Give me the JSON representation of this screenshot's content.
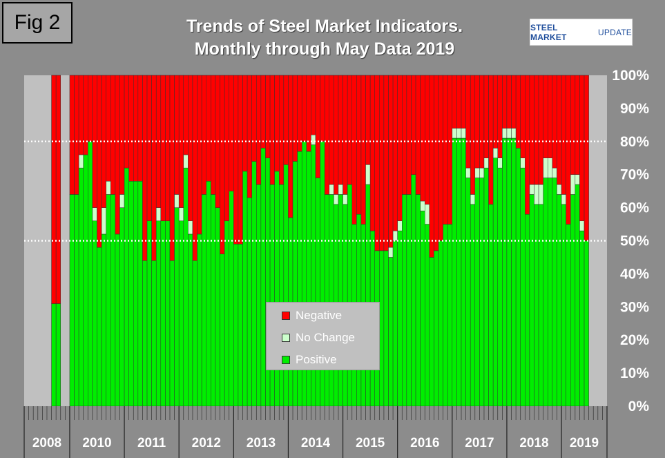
{
  "figure_label": "Fig 2",
  "title_line1": "Trends of Steel Market Indicators.",
  "title_line2": "Monthly through May Data  2019",
  "logo": {
    "part1": "STEEL MARKET",
    "part2": "UPDATE"
  },
  "colors": {
    "negative": "#ff0000",
    "no_change": "#ccffcc",
    "positive": "#00ee00",
    "plot_bg": "#c0c0c0",
    "background": "#8c8c8c"
  },
  "legend": [
    {
      "label": "Negative",
      "color": "#ff0000"
    },
    {
      "label": "No Change",
      "color": "#ccffcc"
    },
    {
      "label": "Positive",
      "color": "#00ee00"
    }
  ],
  "chart_data": {
    "type": "bar",
    "stacked": true,
    "title": "Trends of Steel Market Indicators. Monthly through May Data 2019",
    "ylabel": "",
    "ylim": [
      0,
      100
    ],
    "y_ticks": [
      "0%",
      "10%",
      "20%",
      "30%",
      "40%",
      "50%",
      "60%",
      "70%",
      "80%",
      "90%",
      "100%"
    ],
    "reference_lines": [
      50,
      80
    ],
    "year_groups": [
      {
        "label": "2008",
        "months": 10
      },
      {
        "label": "2010",
        "months": 12
      },
      {
        "label": "2011",
        "months": 12
      },
      {
        "label": "2012",
        "months": 12
      },
      {
        "label": "2013",
        "months": 12
      },
      {
        "label": "2014",
        "months": 12
      },
      {
        "label": "2015",
        "months": 12
      },
      {
        "label": "2016",
        "months": 12
      },
      {
        "label": "2017",
        "months": 12
      },
      {
        "label": "2018",
        "months": 12
      },
      {
        "label": "2019",
        "months": 10
      }
    ],
    "series": [
      {
        "name": "Positive",
        "values": [
          null,
          null,
          null,
          null,
          null,
          null,
          31,
          31,
          null,
          null,
          64,
          64,
          72,
          76,
          80,
          56,
          48,
          52,
          64,
          64,
          52,
          60,
          72,
          68,
          68,
          68,
          44,
          56,
          44,
          56,
          56,
          56,
          44,
          60,
          56,
          72,
          52,
          44,
          52,
          64,
          68,
          64,
          60,
          46,
          56,
          65,
          49,
          49,
          71,
          63,
          74,
          67,
          78,
          75,
          67,
          71,
          67,
          73,
          57,
          74,
          77,
          80,
          77,
          79,
          69,
          80,
          64,
          64,
          61,
          64,
          61,
          67,
          55,
          58,
          55,
          67,
          53,
          47,
          47,
          47,
          45,
          50,
          53,
          64,
          64,
          70,
          64,
          59,
          55,
          45,
          47,
          50,
          55,
          55,
          81,
          81,
          81,
          69,
          61,
          69,
          69,
          72,
          61,
          75,
          72,
          81,
          81,
          81,
          78,
          72,
          58,
          64,
          61,
          61,
          69,
          69,
          69,
          64,
          61,
          55,
          64,
          67,
          53,
          50,
          null,
          null,
          null,
          null
        ]
      },
      {
        "name": "No Change",
        "values": [
          null,
          null,
          null,
          null,
          null,
          null,
          0,
          0,
          null,
          null,
          0,
          0,
          4,
          0,
          0,
          4,
          0,
          8,
          4,
          0,
          0,
          4,
          0,
          0,
          0,
          0,
          0,
          0,
          0,
          4,
          0,
          0,
          0,
          4,
          4,
          4,
          4,
          0,
          0,
          0,
          0,
          0,
          0,
          0,
          0,
          0,
          0,
          0,
          0,
          0,
          0,
          0,
          0,
          0,
          0,
          0,
          0,
          0,
          0,
          0,
          0,
          0,
          0,
          3,
          0,
          0,
          0,
          3,
          3,
          3,
          3,
          0,
          0,
          0,
          0,
          6,
          0,
          0,
          0,
          0,
          3,
          3,
          3,
          0,
          0,
          0,
          0,
          3,
          6,
          0,
          0,
          0,
          0,
          0,
          3,
          3,
          3,
          3,
          3,
          3,
          3,
          3,
          0,
          3,
          3,
          3,
          3,
          3,
          0,
          3,
          0,
          3,
          6,
          6,
          6,
          6,
          3,
          3,
          3,
          0,
          6,
          3,
          3,
          0,
          null,
          null,
          null,
          null
        ]
      },
      {
        "name": "Negative",
        "values": [
          null,
          null,
          null,
          null,
          null,
          null,
          69,
          69,
          null,
          null,
          36,
          36,
          24,
          24,
          20,
          40,
          52,
          40,
          32,
          36,
          48,
          36,
          28,
          32,
          32,
          32,
          56,
          44,
          56,
          40,
          44,
          44,
          56,
          36,
          40,
          24,
          44,
          56,
          48,
          36,
          32,
          36,
          40,
          54,
          44,
          35,
          51,
          51,
          29,
          37,
          26,
          33,
          22,
          25,
          33,
          29,
          33,
          27,
          43,
          26,
          23,
          20,
          23,
          18,
          31,
          20,
          36,
          33,
          36,
          33,
          36,
          33,
          45,
          42,
          45,
          27,
          47,
          53,
          53,
          53,
          52,
          47,
          44,
          36,
          36,
          30,
          36,
          38,
          39,
          55,
          53,
          50,
          45,
          45,
          16,
          16,
          16,
          28,
          36,
          28,
          28,
          25,
          39,
          22,
          25,
          16,
          16,
          16,
          22,
          25,
          42,
          33,
          33,
          33,
          25,
          25,
          28,
          33,
          36,
          45,
          30,
          30,
          44,
          50,
          null,
          null,
          null,
          null
        ]
      }
    ]
  }
}
